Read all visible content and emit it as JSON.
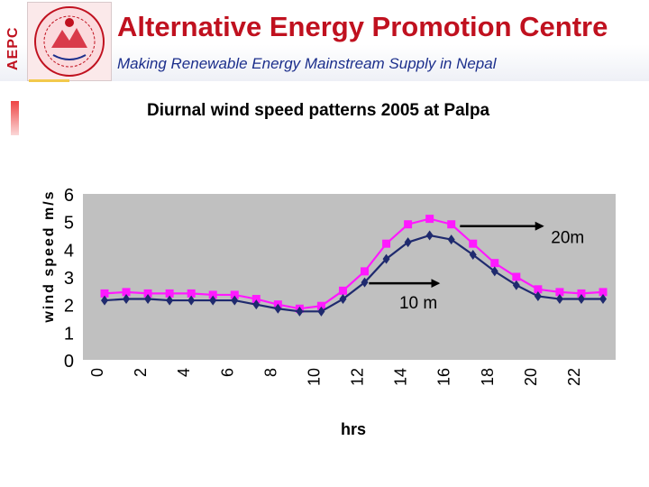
{
  "header": {
    "acronym": "AEPC",
    "title": "Alternative Energy Promotion Centre",
    "subtitle": "Making Renewable Energy Mainstream Supply in Nepal"
  },
  "colors": {
    "title": "#c0111f",
    "subtitle": "#1c2f8c",
    "plot_bg": "#c0c0c0",
    "series_20m": "#ff19ff",
    "series_10m": "#1f2a6e"
  },
  "chart_data": {
    "type": "line",
    "title": "Diurnal wind speed patterns 2005 at Palpa",
    "xlabel": "hrs",
    "ylabel": "wind speed m/s",
    "ylim": [
      0,
      6
    ],
    "yticks": [
      "0",
      "1",
      "2",
      "3",
      "4",
      "5",
      "6"
    ],
    "xticks": [
      "0",
      "2",
      "4",
      "6",
      "8",
      "10",
      "12",
      "14",
      "16",
      "18",
      "20",
      "22"
    ],
    "x": [
      0,
      1,
      2,
      3,
      4,
      5,
      6,
      7,
      8,
      9,
      10,
      11,
      12,
      13,
      14,
      15,
      16,
      17,
      18,
      19,
      20,
      21,
      22,
      23
    ],
    "grid": false,
    "series": [
      {
        "name": "20m",
        "marker": "square",
        "values": [
          2.4,
          2.45,
          2.4,
          2.4,
          2.4,
          2.35,
          2.35,
          2.2,
          2.0,
          1.85,
          1.95,
          2.5,
          3.2,
          4.2,
          4.9,
          5.1,
          4.9,
          4.2,
          3.5,
          3.0,
          2.55,
          2.45,
          2.4,
          2.45
        ]
      },
      {
        "name": "10m",
        "marker": "diamond",
        "values": [
          2.15,
          2.2,
          2.2,
          2.15,
          2.15,
          2.15,
          2.15,
          2.0,
          1.85,
          1.75,
          1.75,
          2.2,
          2.8,
          3.65,
          4.25,
          4.5,
          4.35,
          3.8,
          3.2,
          2.7,
          2.3,
          2.2,
          2.2,
          2.2
        ]
      }
    ],
    "annotations": [
      {
        "text": "20m",
        "series": "20m"
      },
      {
        "text": "10 m",
        "series": "10m"
      }
    ]
  }
}
